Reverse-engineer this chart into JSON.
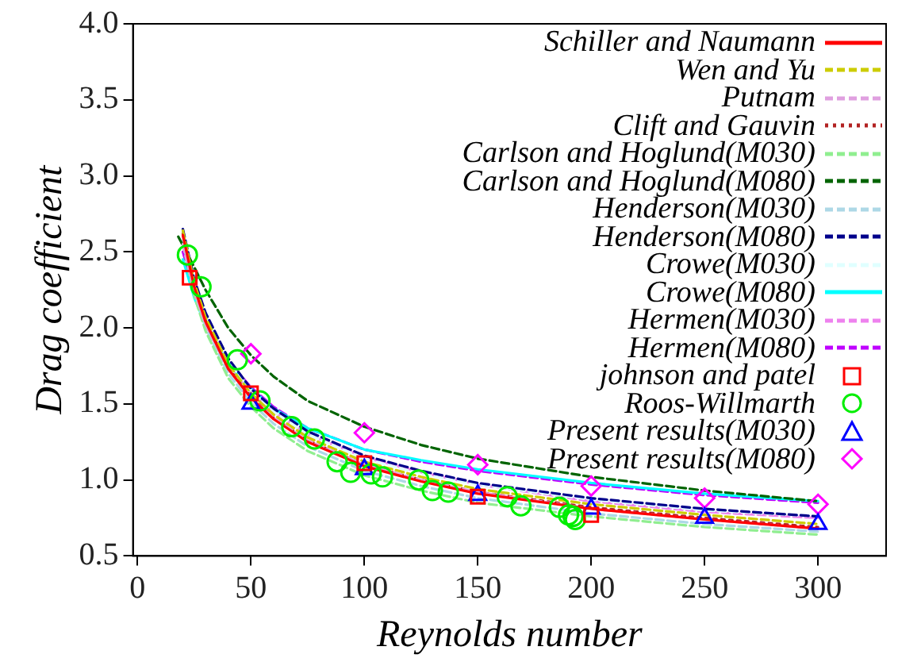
{
  "chart_data": {
    "type": "line",
    "xlabel": "Reynolds number",
    "ylabel": "Drag coefficient",
    "xlim": [
      -2,
      330
    ],
    "xticks": [
      0,
      50,
      100,
      150,
      200,
      250,
      300
    ],
    "ylim": [
      0.5,
      4.0
    ],
    "yticks": [
      0.5,
      {
        "value": 1,
        "label": "1.0"
      },
      1.5,
      {
        "value": 2,
        "label": "2.0"
      },
      2.5,
      {
        "value": 3,
        "label": "3.0"
      },
      3.5,
      {
        "value": 4,
        "label": "4.0"
      }
    ],
    "grid": false,
    "legend": "top right",
    "series": [
      {
        "type": "line",
        "name": "Schiller and Naumann",
        "color": "#ff0000",
        "line_style": "solid",
        "x": [
          20,
          25,
          30,
          40,
          50,
          60,
          75,
          100,
          125,
          150,
          200,
          250,
          300
        ],
        "values": [
          2.61,
          2.27,
          2.04,
          1.73,
          1.54,
          1.4,
          1.25,
          1.09,
          0.99,
          0.91,
          0.81,
          0.74,
          0.68
        ]
      },
      {
        "type": "line",
        "name": "Wen and Yu",
        "color": "#cccc00",
        "line_style": "dashed",
        "x": [
          20,
          25,
          30,
          40,
          50,
          60,
          75,
          100,
          125,
          150,
          200,
          250,
          300
        ],
        "values": [
          2.64,
          2.3,
          2.07,
          1.76,
          1.57,
          1.43,
          1.28,
          1.12,
          1.02,
          0.94,
          0.84,
          0.77,
          0.71
        ]
      },
      {
        "type": "line",
        "name": "Putnam",
        "color": "#e0a0e0",
        "line_style": "dashed",
        "x": [
          20,
          25,
          30,
          40,
          50,
          60,
          75,
          100,
          125,
          150,
          200,
          250,
          300
        ],
        "values": [
          2.55,
          2.24,
          2.02,
          1.73,
          1.54,
          1.41,
          1.26,
          1.1,
          1.0,
          0.92,
          0.81,
          0.74,
          0.68
        ]
      },
      {
        "type": "line",
        "name": "Clift and Gauvin",
        "color": "#b22222",
        "line_style": "dotted",
        "x": [
          20,
          25,
          30,
          40,
          50,
          60,
          75,
          100,
          125,
          150,
          200,
          250,
          300
        ],
        "values": [
          2.62,
          2.28,
          2.05,
          1.74,
          1.55,
          1.41,
          1.26,
          1.1,
          1.0,
          0.92,
          0.82,
          0.75,
          0.69
        ]
      },
      {
        "type": "line",
        "name": "Carlson and Hoglund(M030)",
        "color": "#90ee90",
        "line_style": "dashed",
        "x": [
          20,
          25,
          30,
          40,
          50,
          60,
          75,
          100,
          125,
          150,
          200,
          250,
          300
        ],
        "values": [
          2.55,
          2.21,
          1.98,
          1.67,
          1.48,
          1.34,
          1.19,
          1.03,
          0.93,
          0.85,
          0.76,
          0.69,
          0.64
        ]
      },
      {
        "type": "line",
        "name": "Carlson and Hoglund(M080)",
        "color": "#006400",
        "line_style": "dashed",
        "x": [
          18,
          25,
          30,
          40,
          50,
          60,
          75,
          100,
          125,
          150,
          200,
          250,
          300
        ],
        "values": [
          2.6,
          2.4,
          2.25,
          2.0,
          1.82,
          1.68,
          1.52,
          1.35,
          1.23,
          1.14,
          1.02,
          0.93,
          0.86
        ]
      },
      {
        "type": "line",
        "name": "Henderson(M030)",
        "color": "#add8e6",
        "line_style": "dashed",
        "x": [
          20,
          25,
          30,
          40,
          50,
          60,
          75,
          100,
          125,
          150,
          200,
          250,
          300
        ],
        "values": [
          2.57,
          2.24,
          2.0,
          1.7,
          1.51,
          1.37,
          1.22,
          1.06,
          0.96,
          0.88,
          0.78,
          0.71,
          0.66
        ]
      },
      {
        "type": "line",
        "name": "Henderson(M080)",
        "color": "#00008b",
        "line_style": "dashed",
        "x": [
          20,
          25,
          30,
          40,
          50,
          60,
          75,
          100,
          125,
          150,
          200,
          250,
          300
        ],
        "values": [
          2.65,
          2.32,
          2.1,
          1.8,
          1.6,
          1.47,
          1.32,
          1.16,
          1.06,
          0.98,
          0.88,
          0.81,
          0.76
        ]
      },
      {
        "type": "line",
        "name": "Crowe(M030)",
        "color": "#e0ffff",
        "line_style": "dashed",
        "x": [
          20,
          25,
          30,
          40,
          50,
          60,
          75,
          100,
          125,
          150,
          200,
          250,
          300
        ],
        "values": [
          2.63,
          2.3,
          2.08,
          1.78,
          1.59,
          1.45,
          1.3,
          1.14,
          1.04,
          0.97,
          0.87,
          0.8,
          0.76
        ]
      },
      {
        "type": "line",
        "name": "Crowe(M080)",
        "color": "#00ffff",
        "line_style": "solid",
        "x": [
          20,
          25,
          30,
          40,
          50,
          60,
          75,
          100,
          125,
          150,
          200,
          250,
          300
        ],
        "values": [
          2.45,
          2.2,
          2.02,
          1.77,
          1.6,
          1.47,
          1.34,
          1.2,
          1.13,
          1.07,
          0.98,
          0.91,
          0.86
        ]
      },
      {
        "type": "line",
        "name": "Hermen(M030)",
        "color": "#ee82ee",
        "line_style": "dashed",
        "x": [
          20,
          25,
          30,
          40,
          50,
          60,
          75,
          100,
          125,
          150,
          200,
          250,
          300
        ],
        "values": [
          2.6,
          2.28,
          2.06,
          1.77,
          1.58,
          1.45,
          1.3,
          1.15,
          1.05,
          0.97,
          0.86,
          0.79,
          0.75
        ]
      },
      {
        "type": "line",
        "name": "Hermen(M080)",
        "color": "#bf00ff",
        "line_style": "dashed",
        "x": [
          20,
          25,
          30,
          40,
          50,
          60,
          75,
          100,
          125,
          150,
          200,
          250,
          300
        ],
        "values": [
          2.5,
          2.24,
          2.04,
          1.78,
          1.61,
          1.48,
          1.34,
          1.2,
          1.12,
          1.06,
          0.97,
          0.9,
          0.85
        ]
      },
      {
        "type": "scatter",
        "name": "johnson and patel",
        "color": "#ff0000",
        "marker": "square",
        "x": [
          23,
          50,
          100,
          150,
          200
        ],
        "values": [
          2.33,
          1.57,
          1.11,
          0.89,
          0.77
        ]
      },
      {
        "type": "scatter",
        "name": "Roos-Willmarth",
        "color": "#00ee00",
        "marker": "circle",
        "x": [
          22,
          28,
          44,
          54,
          68,
          78,
          88,
          94,
          103,
          108,
          124,
          130,
          137,
          163,
          169,
          186,
          190,
          192,
          193
        ],
        "values": [
          2.48,
          2.27,
          1.79,
          1.52,
          1.35,
          1.27,
          1.12,
          1.05,
          1.04,
          1.02,
          1.0,
          0.93,
          0.92,
          0.89,
          0.83,
          0.82,
          0.77,
          0.76,
          0.74
        ]
      },
      {
        "type": "scatter",
        "name": "Present results(M030)",
        "color": "#0000ff",
        "marker": "triangle",
        "x": [
          50,
          100,
          150,
          200,
          250,
          300
        ],
        "values": [
          1.5,
          1.07,
          0.9,
          0.81,
          0.75,
          0.71
        ]
      },
      {
        "type": "scatter",
        "name": "Present results(M080)",
        "color": "#ff00ff",
        "marker": "diamond",
        "x": [
          50,
          100,
          150,
          200,
          250,
          300
        ],
        "values": [
          1.83,
          1.31,
          1.1,
          0.96,
          0.88,
          0.84
        ]
      }
    ]
  }
}
